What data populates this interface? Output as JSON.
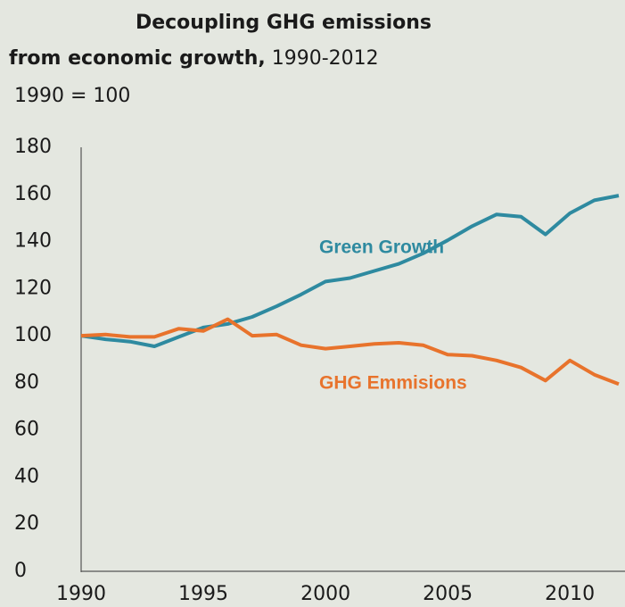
{
  "chart_data": {
    "type": "line",
    "title": "Decoupling GHG emissions",
    "title_line2": "from economic growth,",
    "title_period": "1990-2012",
    "subtitle": "1990 = 100",
    "x": [
      1990,
      1991,
      1992,
      1993,
      1994,
      1995,
      1996,
      1997,
      1998,
      1999,
      2000,
      2001,
      2002,
      2003,
      2004,
      2005,
      2006,
      2007,
      2008,
      2009,
      2010,
      2011,
      2012
    ],
    "series": [
      {
        "name": "Green Growth",
        "color": "#2e8aa0",
        "values": [
          100,
          98.5,
          97.5,
          95.5,
          99.5,
          103.5,
          105,
          108,
          112.5,
          117.5,
          123,
          124.5,
          127.5,
          130.5,
          135,
          140.5,
          146.5,
          151.5,
          150.5,
          143,
          152,
          157.5,
          159.5
        ]
      },
      {
        "name": "GHG Emmisions",
        "color": "#e8732c",
        "values": [
          100,
          100.5,
          99.5,
          99.5,
          103,
          102,
          107,
          100,
          100.5,
          96,
          94.5,
          95.5,
          96.5,
          97,
          96,
          92,
          91.5,
          89.5,
          86.5,
          81,
          89.5,
          83.5,
          79.5
        ]
      }
    ],
    "xlim": [
      1990,
      2012
    ],
    "xticks": [
      1990,
      1995,
      2000,
      2005,
      2010
    ],
    "ylim": [
      0,
      180
    ],
    "yticks": [
      0,
      20,
      40,
      60,
      80,
      100,
      120,
      140,
      160,
      180
    ],
    "grid": false
  }
}
